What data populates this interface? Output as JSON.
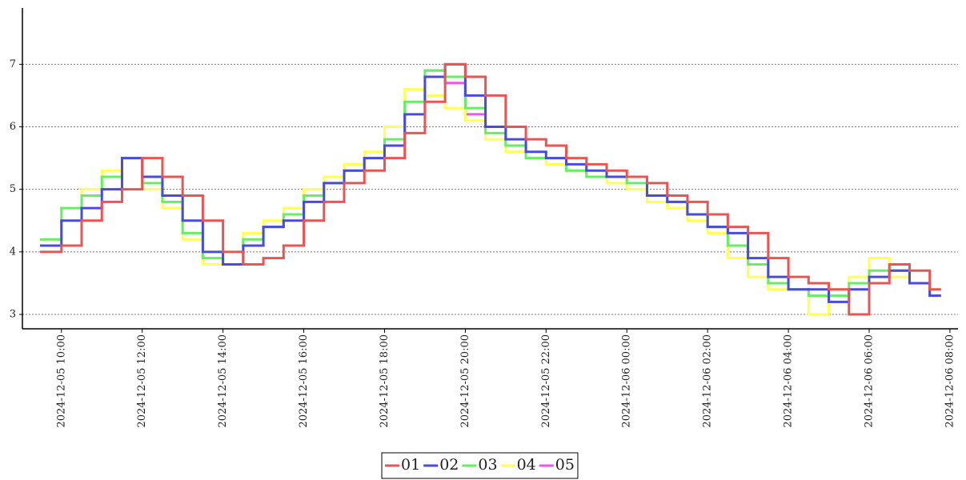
{
  "chart_data": {
    "type": "line",
    "line_style": "step",
    "grid": true,
    "legend": "bottom",
    "x": [
      "2024-12-05 09:30",
      "2024-12-05 10:00",
      "2024-12-05 10:30",
      "2024-12-05 11:00",
      "2024-12-05 11:30",
      "2024-12-05 12:00",
      "2024-12-05 12:30",
      "2024-12-05 13:00",
      "2024-12-05 13:30",
      "2024-12-05 14:00",
      "2024-12-05 14:30",
      "2024-12-05 15:00",
      "2024-12-05 15:30",
      "2024-12-05 16:00",
      "2024-12-05 16:30",
      "2024-12-05 17:00",
      "2024-12-05 17:30",
      "2024-12-05 18:00",
      "2024-12-05 18:30",
      "2024-12-05 19:00",
      "2024-12-05 19:30",
      "2024-12-05 20:00",
      "2024-12-05 20:30",
      "2024-12-05 21:00",
      "2024-12-05 21:30",
      "2024-12-05 22:00",
      "2024-12-05 22:30",
      "2024-12-05 23:00",
      "2024-12-05 23:30",
      "2024-12-06 00:00",
      "2024-12-06 00:30",
      "2024-12-06 01:00",
      "2024-12-06 01:30",
      "2024-12-06 02:00",
      "2024-12-06 02:30",
      "2024-12-06 03:00",
      "2024-12-06 03:30",
      "2024-12-06 04:00",
      "2024-12-06 04:30",
      "2024-12-06 05:00",
      "2024-12-06 05:30",
      "2024-12-06 06:00",
      "2024-12-06 06:30",
      "2024-12-06 07:00",
      "2024-12-06 07:30"
    ],
    "series": [
      {
        "name": "01",
        "color": "#e85555",
        "values": [
          4.0,
          4.1,
          4.5,
          4.8,
          5.0,
          5.5,
          5.2,
          4.9,
          4.5,
          4.0,
          3.8,
          3.9,
          4.1,
          4.5,
          4.8,
          5.1,
          5.3,
          5.5,
          5.9,
          6.4,
          7.0,
          6.8,
          6.5,
          6.0,
          5.8,
          5.7,
          5.5,
          5.4,
          5.3,
          5.2,
          5.1,
          4.9,
          4.8,
          4.6,
          4.4,
          4.3,
          3.9,
          3.6,
          3.5,
          3.4,
          3.0,
          3.5,
          3.8,
          3.7,
          3.4
        ]
      },
      {
        "name": "02",
        "color": "#4a4adf",
        "values": [
          4.1,
          4.5,
          4.7,
          5.0,
          5.5,
          5.2,
          4.9,
          4.5,
          4.0,
          3.8,
          4.1,
          4.4,
          4.5,
          4.8,
          5.1,
          5.3,
          5.5,
          5.7,
          6.2,
          6.8,
          7.0,
          6.5,
          6.0,
          5.8,
          5.6,
          5.5,
          5.4,
          5.3,
          5.2,
          5.2,
          4.9,
          4.8,
          4.6,
          4.4,
          4.3,
          3.9,
          3.6,
          3.4,
          3.4,
          3.2,
          3.4,
          3.6,
          3.7,
          3.5,
          3.3
        ]
      },
      {
        "name": "03",
        "color": "#66ee66",
        "values": [
          4.2,
          4.7,
          4.9,
          5.2,
          5.5,
          5.1,
          4.8,
          4.3,
          3.9,
          3.8,
          4.2,
          4.4,
          4.6,
          4.9,
          5.1,
          5.3,
          5.5,
          5.8,
          6.4,
          6.9,
          6.8,
          6.3,
          5.9,
          5.7,
          5.5,
          5.5,
          5.3,
          5.2,
          5.2,
          5.1,
          4.9,
          4.8,
          4.6,
          4.4,
          4.1,
          3.8,
          3.5,
          3.4,
          3.3,
          3.3,
          3.5,
          3.7,
          3.7,
          3.5,
          3.3
        ]
      },
      {
        "name": "04",
        "color": "#ffff55",
        "values": [
          4.2,
          4.7,
          5.0,
          5.3,
          5.5,
          5.0,
          4.7,
          4.2,
          3.8,
          4.0,
          4.3,
          4.5,
          4.7,
          5.0,
          5.2,
          5.4,
          5.6,
          6.0,
          6.6,
          6.5,
          6.3,
          6.1,
          5.8,
          5.6,
          5.5,
          5.4,
          5.3,
          5.2,
          5.1,
          5.0,
          4.8,
          4.7,
          4.5,
          4.3,
          3.9,
          3.6,
          3.4,
          3.4,
          3.0,
          3.4,
          3.6,
          3.9,
          3.6,
          3.5,
          3.4
        ]
      },
      {
        "name": "05",
        "color": "#ee55ee",
        "values": [
          null,
          null,
          null,
          null,
          null,
          null,
          null,
          null,
          null,
          null,
          null,
          null,
          null,
          null,
          null,
          null,
          null,
          null,
          null,
          6.9,
          6.7,
          6.2,
          null,
          null,
          null,
          null,
          null,
          null,
          null,
          null,
          null,
          null,
          null,
          null,
          null,
          null,
          null,
          null,
          null,
          null,
          null,
          null,
          null,
          null,
          null
        ]
      }
    ],
    "xlim": [
      "2024-12-05 09:02",
      "2024-12-06 08:12"
    ],
    "xticks": [
      "2024-12-05 10:00",
      "2024-12-05 12:00",
      "2024-12-05 14:00",
      "2024-12-05 16:00",
      "2024-12-05 18:00",
      "2024-12-05 20:00",
      "2024-12-05 22:00",
      "2024-12-06 00:00",
      "2024-12-06 02:00",
      "2024-12-06 04:00",
      "2024-12-06 06:00",
      "2024-12-06 08:00"
    ],
    "ylim": [
      2.77,
      7.9
    ],
    "yticks": [
      3,
      4,
      5,
      6,
      7
    ]
  }
}
